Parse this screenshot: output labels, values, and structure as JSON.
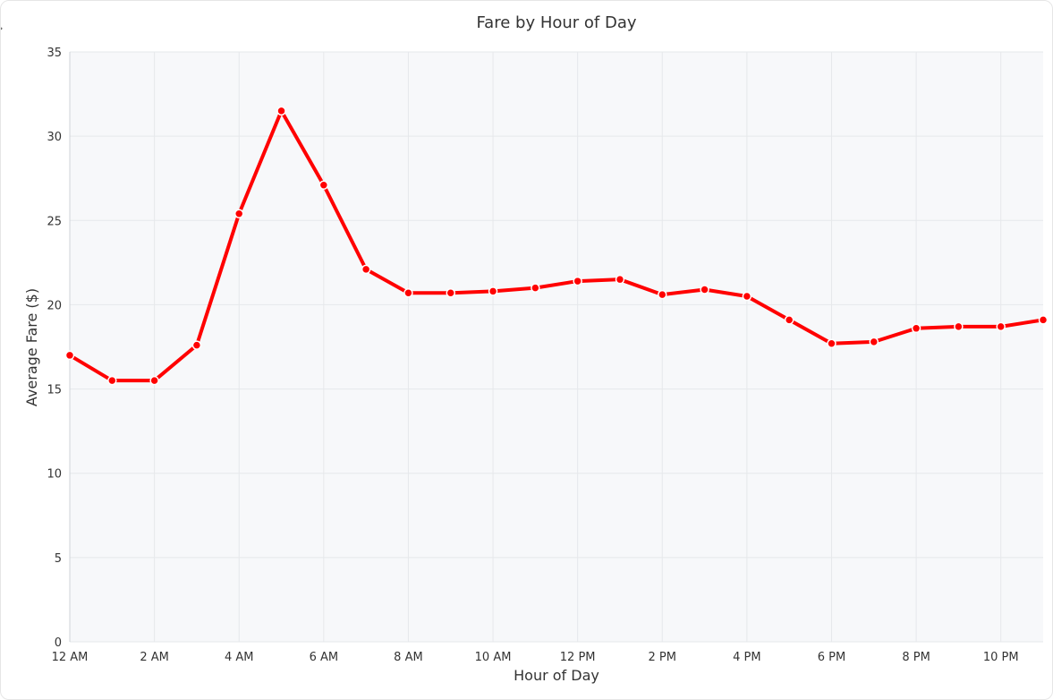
{
  "chart_data": {
    "type": "line",
    "title": "Fare by Hour of Day",
    "xlabel": "Hour of Day",
    "ylabel": "Average Fare ($)",
    "x": [
      0,
      1,
      2,
      3,
      4,
      5,
      6,
      7,
      8,
      9,
      10,
      11,
      12,
      13,
      14,
      15,
      16,
      17,
      18,
      19,
      20,
      21,
      22,
      23
    ],
    "xlim": [
      0,
      23
    ],
    "ylim": [
      0,
      35
    ],
    "xticks": [
      0,
      2,
      4,
      6,
      8,
      10,
      12,
      14,
      16,
      18,
      20,
      22
    ],
    "xtick_labels": [
      "12 AM",
      "2 AM",
      "4 AM",
      "6 AM",
      "8 AM",
      "10 AM",
      "12 PM",
      "2 PM",
      "4 PM",
      "6 PM",
      "8 PM",
      "10 PM"
    ],
    "yticks": [
      0,
      5,
      10,
      15,
      20,
      25,
      30,
      35
    ],
    "ytick_labels": [
      "0",
      "5",
      "10",
      "15",
      "20",
      "25",
      "30",
      "35"
    ],
    "grid": true,
    "series": [
      {
        "values": [
          17.0,
          15.5,
          15.5,
          17.6,
          25.4,
          31.5,
          27.1,
          22.1,
          20.7,
          20.7,
          20.8,
          21.0,
          21.4,
          21.5,
          20.6,
          20.9,
          20.5,
          19.1,
          17.7,
          17.8,
          18.6,
          18.7,
          18.7,
          19.1
        ],
        "color": "#ff0000"
      }
    ]
  }
}
